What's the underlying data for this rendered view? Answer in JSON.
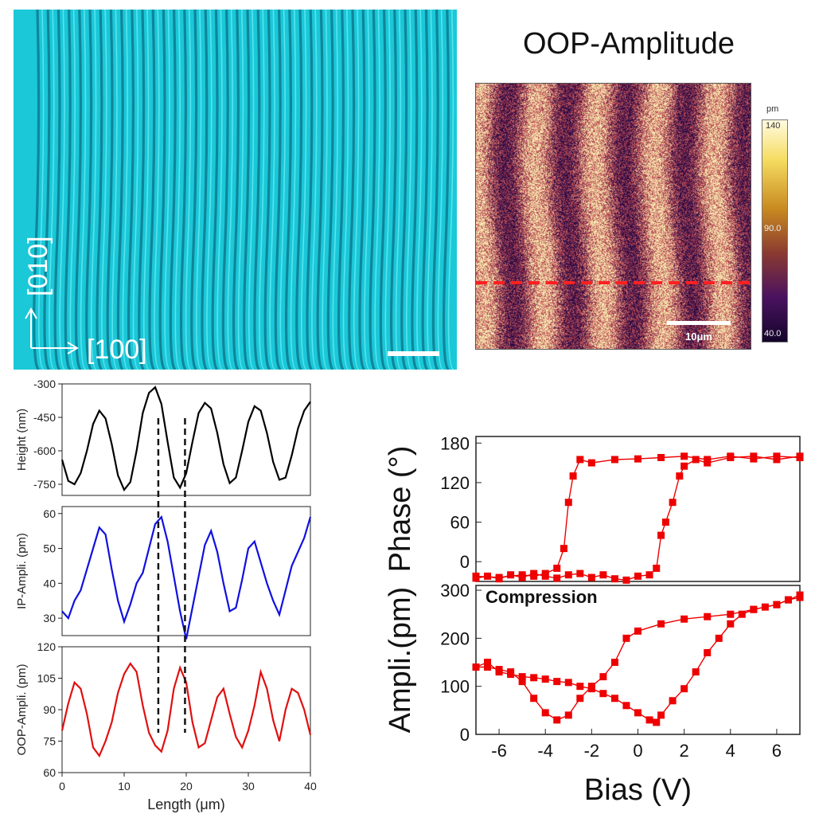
{
  "optical": {
    "axis_y": "[010]",
    "axis_x": "[100]"
  },
  "pfm": {
    "title": "OOP-Amplitude",
    "colorbar_unit": "pm",
    "colorbar_max": "140",
    "colorbar_mid": "90.0",
    "colorbar_min": "40.0",
    "scale_bar": "10μm"
  },
  "chart_data": [
    {
      "type": "line",
      "id": "profiles",
      "xlabel": "Length (μm)",
      "xlim": [
        0,
        40
      ],
      "xticks": [
        0,
        10,
        20,
        30,
        40
      ],
      "panels": [
        {
          "ylabel": "Height (nm)",
          "color": "#000000",
          "ylim": [
            -800,
            -300
          ],
          "yticks": [
            -300,
            -450,
            -600,
            -750
          ],
          "x": [
            0,
            1,
            2,
            3,
            4,
            5,
            6,
            7,
            8,
            9,
            10,
            11,
            12,
            13,
            14,
            15,
            16,
            17,
            18,
            19,
            20,
            21,
            22,
            23,
            24,
            25,
            26,
            27,
            28,
            29,
            30,
            31,
            32,
            33,
            34,
            35,
            36,
            37,
            38,
            39,
            40
          ],
          "y": [
            -640,
            -735,
            -750,
            -700,
            -600,
            -480,
            -420,
            -455,
            -570,
            -710,
            -775,
            -740,
            -600,
            -430,
            -340,
            -315,
            -390,
            -560,
            -720,
            -765,
            -700,
            -560,
            -430,
            -385,
            -410,
            -520,
            -660,
            -745,
            -720,
            -600,
            -470,
            -400,
            -420,
            -520,
            -650,
            -730,
            -720,
            -620,
            -500,
            -420,
            -380
          ]
        },
        {
          "ylabel": "IP-Ampli. (pm)",
          "color": "#1010e0",
          "ylim": [
            25,
            62
          ],
          "yticks": [
            30,
            40,
            50,
            60
          ],
          "x": [
            0,
            1,
            2,
            3,
            4,
            5,
            6,
            7,
            8,
            9,
            10,
            11,
            12,
            13,
            14,
            15,
            16,
            17,
            18,
            19,
            20,
            21,
            22,
            23,
            24,
            25,
            26,
            27,
            28,
            29,
            30,
            31,
            32,
            33,
            34,
            35,
            36,
            37,
            38,
            39,
            40
          ],
          "y": [
            32,
            30,
            35,
            38,
            44,
            50,
            56,
            54,
            44,
            35,
            29,
            34,
            40,
            43,
            50,
            57,
            59,
            52,
            42,
            32,
            24,
            33,
            42,
            51,
            55,
            49,
            40,
            32,
            33,
            41,
            50,
            52,
            46,
            40,
            35,
            31,
            38,
            45,
            49,
            53,
            59
          ]
        },
        {
          "ylabel": "OOP-Ampli. (pm)",
          "color": "#e01010",
          "ylim": [
            60,
            120
          ],
          "yticks": [
            60,
            75,
            90,
            105,
            120
          ],
          "x": [
            0,
            1,
            2,
            3,
            4,
            5,
            6,
            7,
            8,
            9,
            10,
            11,
            12,
            13,
            14,
            15,
            16,
            17,
            18,
            19,
            20,
            21,
            22,
            23,
            24,
            25,
            26,
            27,
            28,
            29,
            30,
            31,
            32,
            33,
            34,
            35,
            36,
            37,
            38,
            39,
            40
          ],
          "y": [
            80,
            93,
            103,
            100,
            88,
            72,
            68,
            75,
            84,
            98,
            107,
            112,
            108,
            92,
            79,
            73,
            70,
            80,
            100,
            110,
            103,
            84,
            72,
            74,
            85,
            96,
            100,
            88,
            77,
            72,
            80,
            92,
            108,
            100,
            85,
            75,
            90,
            100,
            98,
            90,
            78
          ]
        }
      ],
      "markers_x": [
        15.5,
        19.8
      ]
    },
    {
      "type": "scatter",
      "id": "hysteresis",
      "xlabel": "Bias (V)",
      "xlim": [
        -7,
        7
      ],
      "xticks": [
        -6,
        -4,
        -2,
        0,
        2,
        4,
        6
      ],
      "color": "#ee0000",
      "panels": [
        {
          "ylabel": "Phase (°)",
          "ylim": [
            -30,
            190
          ],
          "yticks": [
            0,
            60,
            120,
            180
          ],
          "forward": {
            "x": [
              -7,
              -6.5,
              -6,
              -5.5,
              -5,
              -4.5,
              -4,
              -3.5,
              -3,
              -2.5,
              -2,
              -1.5,
              -1,
              -0.5,
              0,
              0.5,
              0.8,
              1,
              1.2,
              1.5,
              1.8,
              2,
              2.5,
              3,
              4,
              5,
              6,
              7
            ],
            "y": [
              -25,
              -22,
              -26,
              -20,
              -24,
              -18,
              -22,
              -25,
              -20,
              -18,
              -24,
              -20,
              -26,
              -28,
              -22,
              -20,
              -10,
              40,
              60,
              90,
              130,
              145,
              155,
              150,
              158,
              160,
              155,
              160
            ]
          },
          "reverse": {
            "x": [
              7,
              6,
              5,
              4,
              3,
              2,
              1,
              0,
              -1,
              -2,
              -2.5,
              -2.8,
              -3,
              -3.2,
              -3.5,
              -4,
              -4.5,
              -5,
              -6,
              -7
            ],
            "y": [
              158,
              160,
              156,
              160,
              155,
              160,
              158,
              156,
              155,
              150,
              155,
              130,
              90,
              20,
              -10,
              -18,
              -22,
              -20,
              -24,
              -22
            ]
          }
        },
        {
          "ylabel": "Ampli.(pm)",
          "annotation": "Compression",
          "ylim": [
            0,
            310
          ],
          "yticks": [
            0,
            100,
            200,
            300
          ],
          "forward": {
            "x": [
              -7,
              -6.5,
              -6,
              -5.5,
              -5,
              -4.5,
              -4,
              -3.5,
              -3,
              -2.5,
              -2,
              -1.5,
              -1,
              -0.5,
              0,
              0.5,
              0.8,
              1,
              1.5,
              2,
              2.5,
              3,
              3.5,
              4,
              4.5,
              5,
              5.5,
              6,
              6.5,
              7
            ],
            "y": [
              140,
              150,
              130,
              125,
              120,
              118,
              115,
              110,
              108,
              100,
              95,
              85,
              75,
              60,
              45,
              30,
              25,
              40,
              70,
              95,
              130,
              170,
              200,
              230,
              250,
              260,
              265,
              270,
              280,
              285
            ]
          },
          "reverse": {
            "x": [
              7,
              6.5,
              6,
              5,
              4,
              3,
              2,
              1,
              0,
              -0.5,
              -1,
              -1.5,
              -2,
              -2.5,
              -3,
              -3.5,
              -4,
              -4.5,
              -5,
              -5.5,
              -6,
              -6.5,
              -7
            ],
            "y": [
              290,
              280,
              270,
              260,
              250,
              245,
              240,
              230,
              215,
              200,
              150,
              120,
              100,
              75,
              40,
              30,
              45,
              75,
              110,
              130,
              135,
              140,
              140
            ]
          }
        }
      ]
    }
  ]
}
